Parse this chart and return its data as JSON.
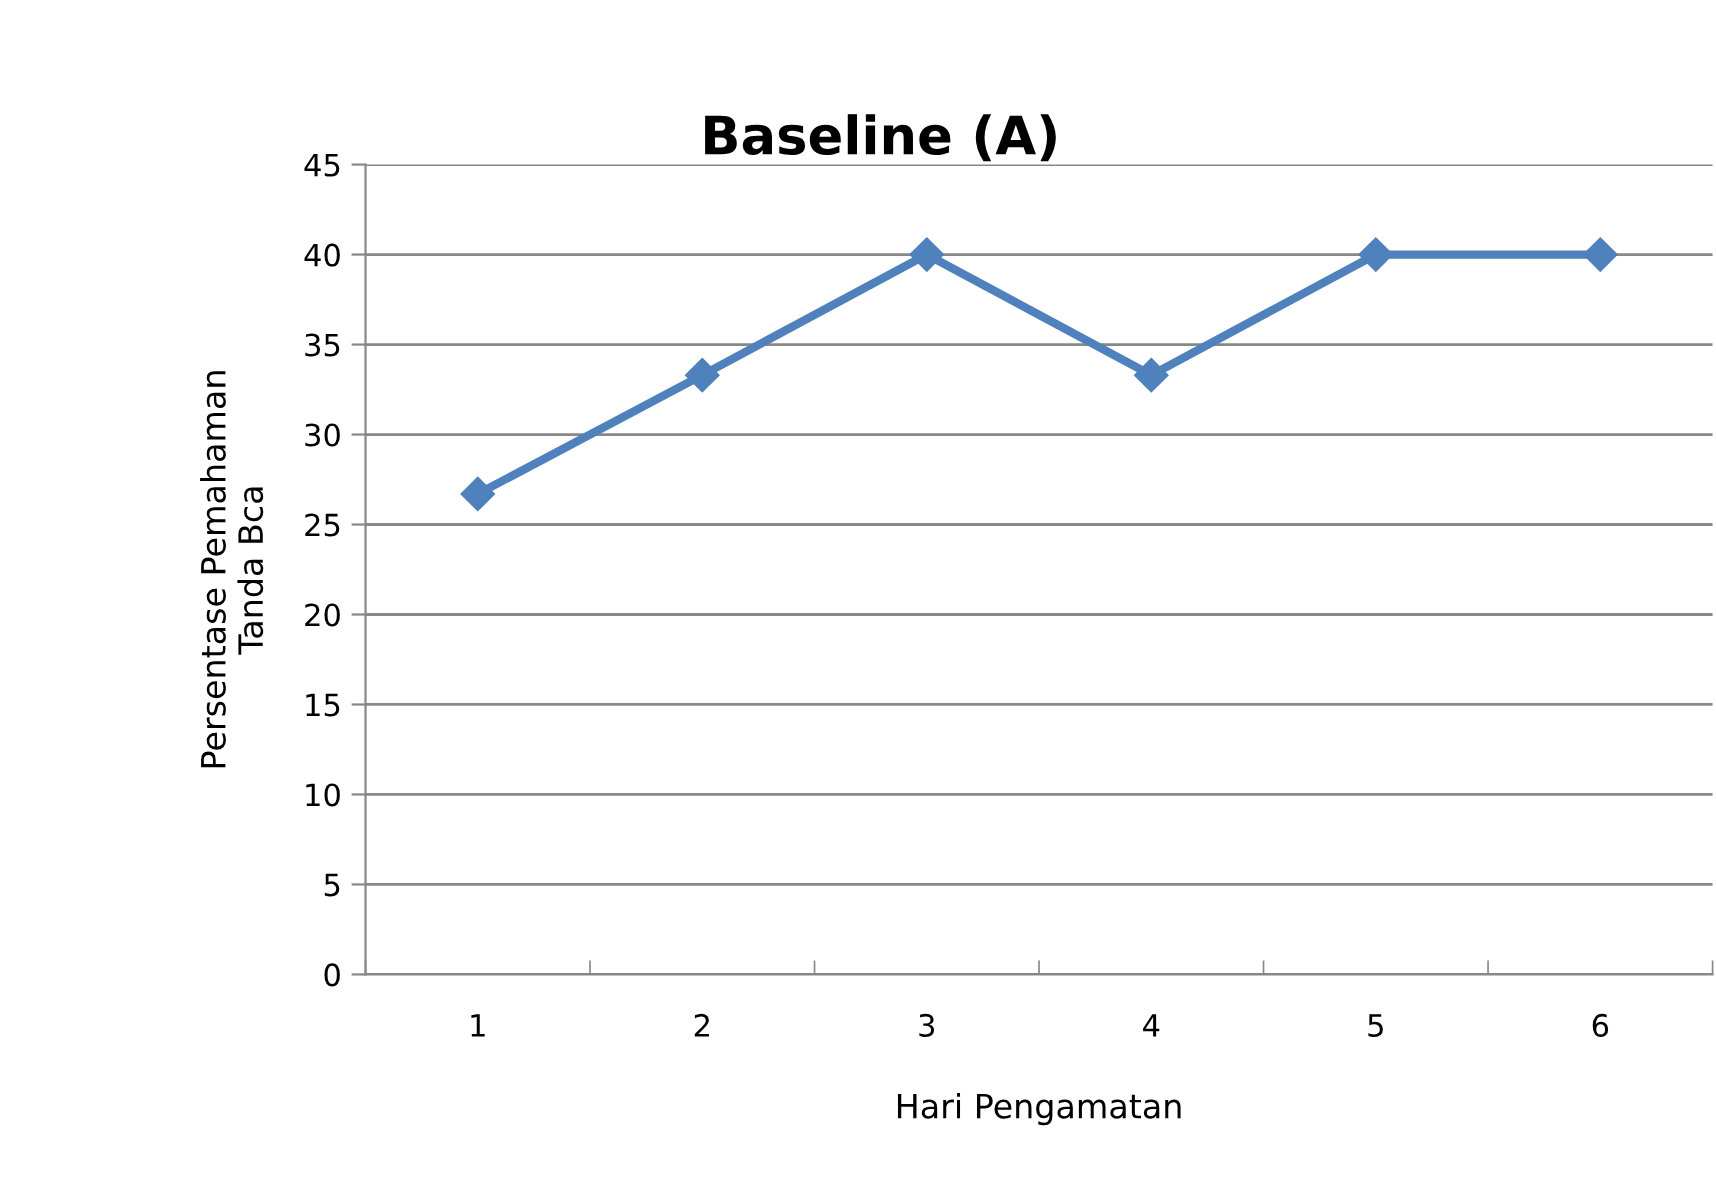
{
  "chart_data": {
    "type": "line",
    "title": "Baseline (A)",
    "xlabel": "Hari Pengamatan",
    "ylabel": "Persentase Pemahaman\nTanda Bca",
    "categories": [
      "1",
      "2",
      "3",
      "4",
      "5",
      "6"
    ],
    "series": [
      {
        "color": "#4f81bd",
        "values": [
          26.7,
          33.3,
          40,
          33.3,
          40,
          40
        ]
      }
    ],
    "ylim": [
      0,
      45
    ],
    "yticks": [
      0,
      5,
      10,
      15,
      20,
      25,
      30,
      35,
      40,
      45
    ],
    "grid": "y",
    "marker": "diamond",
    "line_style": "solid",
    "legend": false
  }
}
